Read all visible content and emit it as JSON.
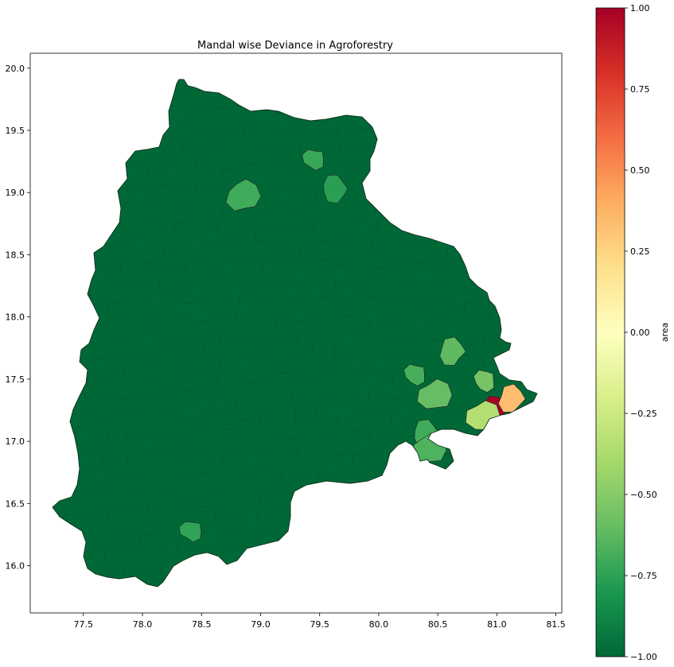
{
  "chart_data": {
    "type": "choropleth",
    "title": "Mandal wise Deviance in Agroforestry",
    "xlabel": "",
    "ylabel": "",
    "xlim": [
      77.05,
      81.55
    ],
    "ylim": [
      15.62,
      20.12
    ],
    "x_ticks": [
      "77.5",
      "78.0",
      "78.5",
      "79.0",
      "79.5",
      "80.0",
      "80.5",
      "81.0",
      "81.5"
    ],
    "x_tick_values": [
      77.5,
      78.0,
      78.5,
      79.0,
      79.5,
      80.0,
      80.5,
      81.0,
      81.5
    ],
    "y_ticks": [
      "16.0",
      "16.5",
      "17.0",
      "17.5",
      "18.0",
      "18.5",
      "19.0",
      "19.5",
      "20.0"
    ],
    "y_tick_values": [
      16.0,
      16.5,
      17.0,
      17.5,
      18.0,
      18.5,
      19.0,
      19.5,
      20.0
    ],
    "grid": false,
    "colorbar": {
      "label": "area",
      "range": [
        -1.0,
        1.0
      ],
      "colormap": "RdYlGn_r",
      "ticks": [
        "1.00",
        "0.75",
        "0.50",
        "0.25",
        "0.00",
        "−0.25",
        "−0.50",
        "−0.75",
        "−1.00"
      ],
      "tick_values": [
        1.0,
        0.75,
        0.5,
        0.25,
        0.0,
        -0.25,
        -0.5,
        -0.75,
        -1.0
      ],
      "stops": [
        "#a50026",
        "#d73027",
        "#f46d43",
        "#fdae61",
        "#fee08b",
        "#ffffbf",
        "#d9ef8b",
        "#a6d96a",
        "#66bd63",
        "#1a9850",
        "#006837"
      ]
    },
    "base_value": -1.0,
    "highlight_regions": [
      {
        "lon": 80.99,
        "lat": 17.28,
        "value": 1.0
      },
      {
        "lon": 81.12,
        "lat": 17.34,
        "value": 0.34
      },
      {
        "lon": 80.88,
        "lat": 17.2,
        "value": -0.35
      },
      {
        "lon": 80.9,
        "lat": 17.49,
        "value": -0.55
      },
      {
        "lon": 80.62,
        "lat": 17.72,
        "value": -0.62
      },
      {
        "lon": 80.47,
        "lat": 17.37,
        "value": -0.6
      },
      {
        "lon": 80.31,
        "lat": 17.54,
        "value": -0.68
      },
      {
        "lon": 80.4,
        "lat": 17.06,
        "value": -0.7
      },
      {
        "lon": 80.42,
        "lat": 16.93,
        "value": -0.66
      },
      {
        "lon": 79.45,
        "lat": 19.27,
        "value": -0.72
      },
      {
        "lon": 79.63,
        "lat": 19.03,
        "value": -0.76
      },
      {
        "lon": 78.85,
        "lat": 18.97,
        "value": -0.7
      },
      {
        "lon": 78.41,
        "lat": 16.28,
        "value": -0.74
      }
    ]
  }
}
